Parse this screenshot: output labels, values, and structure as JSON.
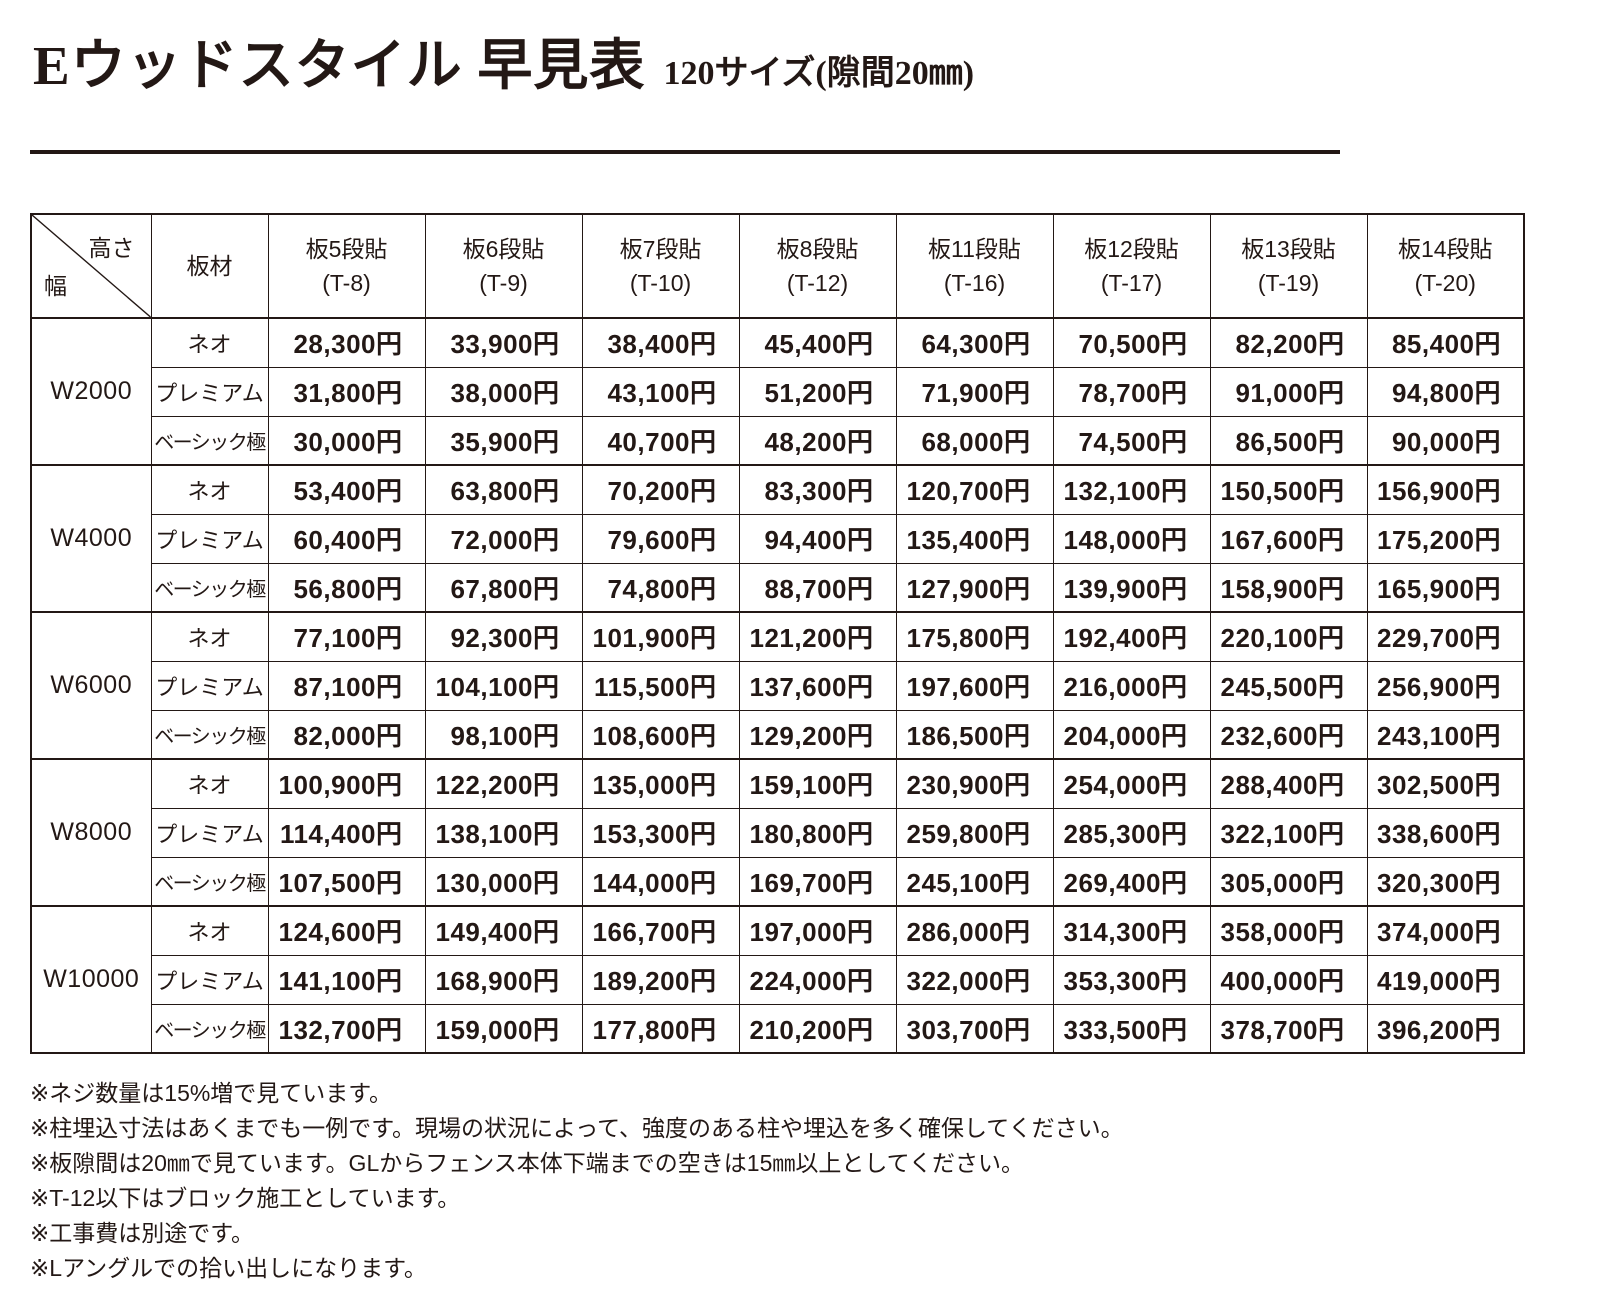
{
  "header": {
    "title": "Eウッドスタイル 早見表",
    "subtitle": "120サイズ(隙間20㎜)"
  },
  "table": {
    "corner_top_right": "高さ",
    "corner_bottom_left": "幅",
    "material_header": "板材",
    "columns": [
      {
        "line1": "板5段貼",
        "line2": "(T-8)"
      },
      {
        "line1": "板6段貼",
        "line2": "(T-9)"
      },
      {
        "line1": "板7段貼",
        "line2": "(T-10)"
      },
      {
        "line1": "板8段貼",
        "line2": "(T-12)"
      },
      {
        "line1": "板11段貼",
        "line2": "(T-16)"
      },
      {
        "line1": "板12段貼",
        "line2": "(T-17)"
      },
      {
        "line1": "板13段貼",
        "line2": "(T-19)"
      },
      {
        "line1": "板14段貼",
        "line2": "(T-20)"
      }
    ],
    "groups": [
      {
        "width": "W2000",
        "rows": [
          {
            "material": "ネオ",
            "prices": [
              "28,300円",
              "33,900円",
              "38,400円",
              "45,400円",
              "64,300円",
              "70,500円",
              "82,200円",
              "85,400円"
            ]
          },
          {
            "material": "プレミアム",
            "prices": [
              "31,800円",
              "38,000円",
              "43,100円",
              "51,200円",
              "71,900円",
              "78,700円",
              "91,000円",
              "94,800円"
            ]
          },
          {
            "material": "ベーシック極",
            "prices": [
              "30,000円",
              "35,900円",
              "40,700円",
              "48,200円",
              "68,000円",
              "74,500円",
              "86,500円",
              "90,000円"
            ]
          }
        ]
      },
      {
        "width": "W4000",
        "rows": [
          {
            "material": "ネオ",
            "prices": [
              "53,400円",
              "63,800円",
              "70,200円",
              "83,300円",
              "120,700円",
              "132,100円",
              "150,500円",
              "156,900円"
            ]
          },
          {
            "material": "プレミアム",
            "prices": [
              "60,400円",
              "72,000円",
              "79,600円",
              "94,400円",
              "135,400円",
              "148,000円",
              "167,600円",
              "175,200円"
            ]
          },
          {
            "material": "ベーシック極",
            "prices": [
              "56,800円",
              "67,800円",
              "74,800円",
              "88,700円",
              "127,900円",
              "139,900円",
              "158,900円",
              "165,900円"
            ]
          }
        ]
      },
      {
        "width": "W6000",
        "rows": [
          {
            "material": "ネオ",
            "prices": [
              "77,100円",
              "92,300円",
              "101,900円",
              "121,200円",
              "175,800円",
              "192,400円",
              "220,100円",
              "229,700円"
            ]
          },
          {
            "material": "プレミアム",
            "prices": [
              "87,100円",
              "104,100円",
              "115,500円",
              "137,600円",
              "197,600円",
              "216,000円",
              "245,500円",
              "256,900円"
            ]
          },
          {
            "material": "ベーシック極",
            "prices": [
              "82,000円",
              "98,100円",
              "108,600円",
              "129,200円",
              "186,500円",
              "204,000円",
              "232,600円",
              "243,100円"
            ]
          }
        ]
      },
      {
        "width": "W8000",
        "rows": [
          {
            "material": "ネオ",
            "prices": [
              "100,900円",
              "122,200円",
              "135,000円",
              "159,100円",
              "230,900円",
              "254,000円",
              "288,400円",
              "302,500円"
            ]
          },
          {
            "material": "プレミアム",
            "prices": [
              "114,400円",
              "138,100円",
              "153,300円",
              "180,800円",
              "259,800円",
              "285,300円",
              "322,100円",
              "338,600円"
            ]
          },
          {
            "material": "ベーシック極",
            "prices": [
              "107,500円",
              "130,000円",
              "144,000円",
              "169,700円",
              "245,100円",
              "269,400円",
              "305,000円",
              "320,300円"
            ]
          }
        ]
      },
      {
        "width": "W10000",
        "rows": [
          {
            "material": "ネオ",
            "prices": [
              "124,600円",
              "149,400円",
              "166,700円",
              "197,000円",
              "286,000円",
              "314,300円",
              "358,000円",
              "374,000円"
            ]
          },
          {
            "material": "プレミアム",
            "prices": [
              "141,100円",
              "168,900円",
              "189,200円",
              "224,000円",
              "322,000円",
              "353,300円",
              "400,000円",
              "419,000円"
            ]
          },
          {
            "material": "ベーシック極",
            "prices": [
              "132,700円",
              "159,000円",
              "177,800円",
              "210,200円",
              "303,700円",
              "333,500円",
              "378,700円",
              "396,200円"
            ]
          }
        ]
      }
    ]
  },
  "notes": [
    "※ネジ数量は15%増で見ています。",
    "※柱埋込寸法はあくまでも一例です。現場の状況によって、強度のある柱や埋込を多く確保してください。",
    "※板隙間は20㎜で見ています。GLからフェンス本体下端までの空きは15㎜以上としてください。",
    "※T-12以下はブロック施工としています。",
    "※工事費は別途です。",
    "※Lアングルでの拾い出しになります。"
  ],
  "colors": {
    "ink": "#231815"
  }
}
